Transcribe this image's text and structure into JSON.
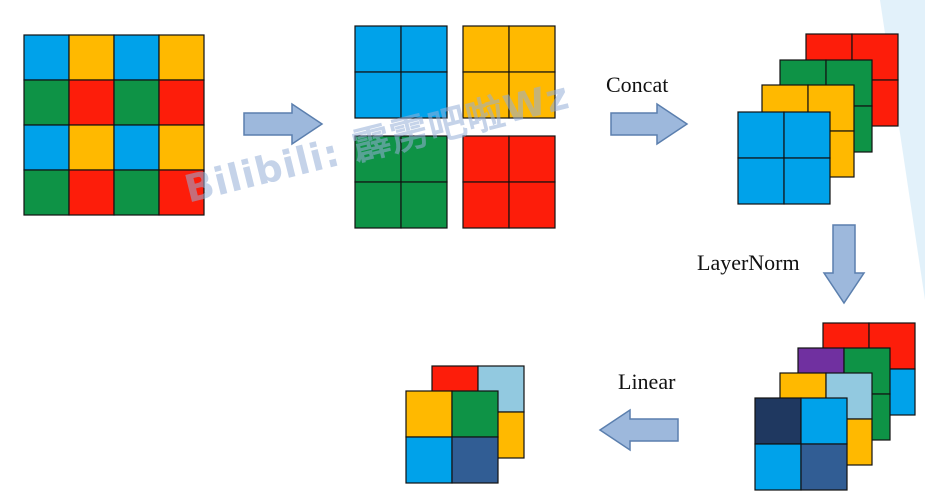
{
  "colors": {
    "blue": "#00a2ea",
    "yellow": "#ffb900",
    "green": "#0e9346",
    "red": "#fd1d0a",
    "purple": "#7030a0",
    "lightblue": "#92c9e0",
    "navy": "#1f3860",
    "steel": "#315d94",
    "arrow_fill": "#9db8dc",
    "arrow_stroke": "#5b7fae",
    "cell_stroke": "#111111",
    "watermark_tri": "#cfe8f7"
  },
  "input_grid": [
    [
      "blue",
      "yellow",
      "blue",
      "yellow"
    ],
    [
      "green",
      "red",
      "green",
      "red"
    ],
    [
      "blue",
      "yellow",
      "blue",
      "yellow"
    ],
    [
      "green",
      "red",
      "green",
      "red"
    ]
  ],
  "patches": [
    [
      "blue",
      "blue",
      "blue",
      "blue"
    ],
    [
      "yellow",
      "yellow",
      "yellow",
      "yellow"
    ],
    [
      "green",
      "green",
      "green",
      "green"
    ],
    [
      "red",
      "red",
      "red",
      "red"
    ]
  ],
  "concat_stack": [
    [
      "red",
      "red",
      "red",
      "red"
    ],
    [
      "green",
      "green",
      "green",
      "green"
    ],
    [
      "yellow",
      "yellow",
      "yellow",
      "yellow"
    ],
    [
      "blue",
      "blue",
      "blue",
      "blue"
    ]
  ],
  "norm_stack": [
    [
      "red",
      "red",
      "blue",
      "blue"
    ],
    [
      "purple",
      "green",
      "green",
      "green"
    ],
    [
      "yellow",
      "lightblue",
      "yellow",
      "yellow"
    ],
    [
      "navy",
      "blue",
      "blue",
      "steel"
    ]
  ],
  "linear_stack": [
    [
      "red",
      "lightblue",
      "yellow",
      "yellow"
    ],
    [
      "yellow",
      "green",
      "blue",
      "steel"
    ]
  ],
  "labels": {
    "concat": "Concat",
    "layernorm": "LayerNorm",
    "linear": "Linear"
  },
  "watermark": "Bilibili: 霹雳吧啦Wz"
}
